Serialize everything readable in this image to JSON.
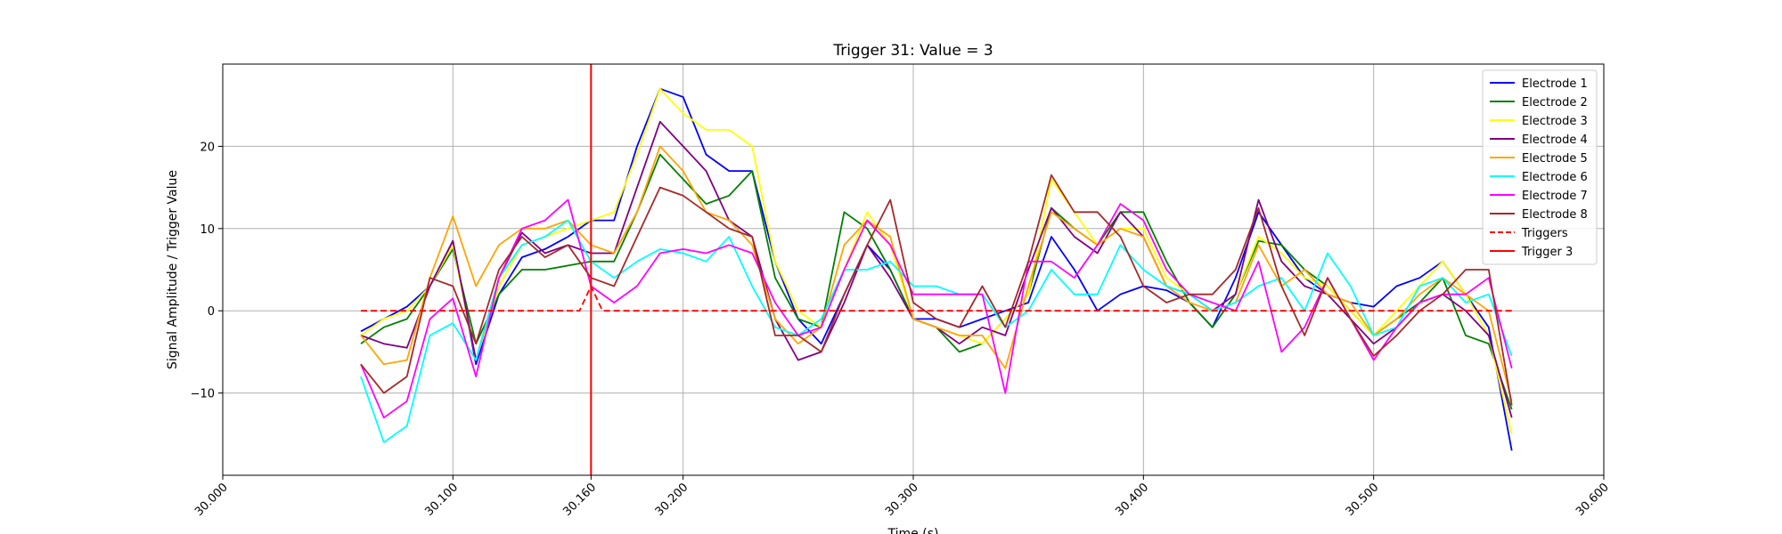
{
  "chart_data": {
    "type": "line",
    "title": "Trigger 31: Value = 3",
    "xlabel": "Time (s)",
    "ylabel": "Signal Amplitude / Trigger Value",
    "xlim": [
      30.0,
      30.6
    ],
    "ylim": [
      -20,
      30
    ],
    "x_ticks": [
      30.0,
      30.1,
      30.16,
      30.2,
      30.3,
      30.4,
      30.5,
      30.6
    ],
    "x_tick_labels": [
      "30.000",
      "30.100",
      "30.160",
      "30.200",
      "30.300",
      "30.400",
      "30.500",
      "30.600"
    ],
    "y_ticks": [
      -10,
      0,
      10,
      20
    ],
    "y_tick_labels": [
      "−10",
      "0",
      "10",
      "20"
    ],
    "grid": true,
    "legend_position": "top-right",
    "series": [
      {
        "name": "Electrode 1",
        "color": "#0000ff",
        "style": "solid",
        "x": [
          30.06,
          30.07,
          30.08,
          30.09,
          30.1,
          30.11,
          30.12,
          30.13,
          30.14,
          30.15,
          30.16,
          30.17,
          30.18,
          30.19,
          30.2,
          30.21,
          30.22,
          30.23,
          30.24,
          30.25,
          30.26,
          30.27,
          30.28,
          30.29,
          30.3,
          30.31,
          30.32,
          30.33,
          30.34,
          30.35,
          30.36,
          30.37,
          30.38,
          30.39,
          30.4,
          30.41,
          30.42,
          30.43,
          30.44,
          30.45,
          30.46,
          30.47,
          30.48,
          30.49,
          30.5,
          30.51,
          30.52,
          30.53,
          30.54,
          30.55,
          30.56
        ],
        "y": [
          -2.5,
          -1,
          0.5,
          3,
          8.5,
          -6.5,
          2,
          6.5,
          7.5,
          9,
          11,
          11,
          20,
          27,
          26,
          19,
          17,
          17,
          6,
          -1,
          -4,
          2,
          8,
          5,
          -1,
          -1,
          -2,
          -1,
          0,
          1,
          9,
          5,
          0,
          2,
          3,
          2.5,
          1,
          -2,
          4,
          12,
          8,
          4,
          2,
          1,
          0.5,
          3,
          4,
          6,
          2,
          -2,
          -17
        ]
      },
      {
        "name": "Electrode 2",
        "color": "#008000",
        "style": "solid",
        "x": [
          30.06,
          30.07,
          30.08,
          30.09,
          30.1,
          30.11,
          30.12,
          30.13,
          30.14,
          30.15,
          30.16,
          30.17,
          30.18,
          30.19,
          30.2,
          30.21,
          30.22,
          30.23,
          30.24,
          30.25,
          30.26,
          30.27,
          30.28,
          30.29,
          30.3,
          30.31,
          30.32,
          30.33,
          30.34,
          30.35,
          30.36,
          30.37,
          30.38,
          30.39,
          30.4,
          30.41,
          30.42,
          30.43,
          30.44,
          30.45,
          30.46,
          30.47,
          30.48,
          30.49,
          30.5,
          30.51,
          30.52,
          30.53,
          30.54,
          30.55,
          30.56
        ],
        "y": [
          -4,
          -2,
          -1,
          3,
          7.5,
          -4,
          2,
          5,
          5,
          5.5,
          6,
          6,
          12,
          19,
          16,
          13,
          14,
          17,
          4,
          -1,
          -2,
          12,
          10,
          5,
          -1,
          -2,
          -5,
          -4,
          -1,
          2,
          12.5,
          10,
          8,
          12,
          12,
          6,
          1,
          -2,
          2,
          8.5,
          8,
          5,
          3,
          0,
          -3,
          -1,
          1,
          4,
          -3,
          -4,
          -12
        ]
      },
      {
        "name": "Electrode 3",
        "color": "#ffff00",
        "style": "solid",
        "x": [
          30.06,
          30.07,
          30.08,
          30.09,
          30.1,
          30.11,
          30.12,
          30.13,
          30.14,
          30.15,
          30.16,
          30.17,
          30.18,
          30.19,
          30.2,
          30.21,
          30.22,
          30.23,
          30.24,
          30.25,
          30.26,
          30.27,
          30.28,
          30.29,
          30.3,
          30.31,
          30.32,
          30.33,
          30.34,
          30.35,
          30.36,
          30.37,
          30.38,
          30.39,
          30.4,
          30.41,
          30.42,
          30.43,
          30.44,
          30.45,
          30.46,
          30.47,
          30.48,
          30.49,
          30.5,
          30.51,
          30.52,
          30.53,
          30.54,
          30.55,
          30.56
        ],
        "y": [
          -3,
          -1,
          0,
          3,
          8,
          -6,
          3,
          8,
          9,
          10,
          11,
          12,
          19,
          27,
          24,
          22,
          22,
          20,
          6,
          0,
          -2,
          5,
          12,
          8,
          -1,
          -2,
          -3,
          -4,
          -1,
          2,
          16,
          12,
          8,
          10,
          10,
          4,
          2,
          0,
          2,
          9,
          7,
          4,
          3,
          0,
          -3,
          0,
          3,
          6,
          2,
          -3,
          -15
        ]
      },
      {
        "name": "Electrode 4",
        "color": "#800080",
        "style": "solid",
        "x": [
          30.06,
          30.07,
          30.08,
          30.09,
          30.1,
          30.11,
          30.12,
          30.13,
          30.14,
          30.15,
          30.16,
          30.17,
          30.18,
          30.19,
          30.2,
          30.21,
          30.22,
          30.23,
          30.24,
          30.25,
          30.26,
          30.27,
          30.28,
          30.29,
          30.3,
          30.31,
          30.32,
          30.33,
          30.34,
          30.35,
          30.36,
          30.37,
          30.38,
          30.39,
          30.4,
          30.41,
          30.42,
          30.43,
          30.44,
          30.45,
          30.46,
          30.47,
          30.48,
          30.49,
          30.5,
          30.51,
          30.52,
          30.53,
          30.54,
          30.55,
          30.56
        ],
        "y": [
          -3,
          -4,
          -4.5,
          3,
          8.5,
          -6,
          4,
          9.5,
          7,
          8,
          7,
          7,
          15,
          23,
          20,
          17,
          11,
          9,
          -1,
          -6,
          -5,
          1,
          8,
          4,
          -1,
          -2,
          -4,
          -2,
          -3,
          5,
          12.5,
          9,
          7,
          12,
          9,
          3,
          2,
          0,
          2,
          13.5,
          6,
          3,
          2,
          -1,
          -4,
          -2,
          1,
          2,
          0,
          -3,
          -13
        ]
      },
      {
        "name": "Electrode 5",
        "color": "#ffa500",
        "style": "solid",
        "x": [
          30.06,
          30.07,
          30.08,
          30.09,
          30.1,
          30.11,
          30.12,
          30.13,
          30.14,
          30.15,
          30.16,
          30.17,
          30.18,
          30.19,
          30.2,
          30.21,
          30.22,
          30.23,
          30.24,
          30.25,
          30.26,
          30.27,
          30.28,
          30.29,
          30.3,
          30.31,
          30.32,
          30.33,
          30.34,
          30.35,
          30.36,
          30.37,
          30.38,
          30.39,
          30.4,
          30.41,
          30.42,
          30.43,
          30.44,
          30.45,
          30.46,
          30.47,
          30.48,
          30.49,
          30.5,
          30.51,
          30.52,
          30.53,
          30.54,
          30.55,
          30.56
        ],
        "y": [
          -3,
          -6.5,
          -6,
          4,
          11.5,
          3,
          8,
          10,
          10,
          11,
          8,
          7,
          12,
          20,
          17,
          12,
          11,
          8,
          -1,
          -4,
          -2,
          8,
          11,
          9,
          -1,
          -2,
          -3,
          -3,
          -7,
          3,
          12,
          10,
          8,
          10,
          9,
          3,
          1,
          0,
          1,
          8,
          3,
          5,
          2,
          1,
          -3,
          -1,
          2,
          4,
          2,
          0,
          -11
        ]
      },
      {
        "name": "Electrode 6",
        "color": "#00ffff",
        "style": "solid",
        "x": [
          30.06,
          30.07,
          30.08,
          30.09,
          30.1,
          30.11,
          30.12,
          30.13,
          30.14,
          30.15,
          30.16,
          30.17,
          30.18,
          30.19,
          30.2,
          30.21,
          30.22,
          30.23,
          30.24,
          30.25,
          30.26,
          30.27,
          30.28,
          30.29,
          30.3,
          30.31,
          30.32,
          30.33,
          30.34,
          30.35,
          30.36,
          30.37,
          30.38,
          30.39,
          30.4,
          30.41,
          30.42,
          30.43,
          30.44,
          30.45,
          30.46,
          30.47,
          30.48,
          30.49,
          30.5,
          30.51,
          30.52,
          30.53,
          30.54,
          30.55,
          30.56
        ],
        "y": [
          -8,
          -16,
          -14,
          -3,
          -1.5,
          -6,
          4,
          8,
          9,
          11,
          6,
          4,
          6,
          7.5,
          7,
          6,
          9,
          3,
          -2,
          -3,
          -1,
          5,
          5,
          6,
          3,
          3,
          2,
          2,
          -2,
          0,
          5,
          2,
          2,
          8,
          5,
          3,
          2,
          0,
          1,
          3,
          4,
          0,
          7,
          3,
          -3,
          -2,
          3,
          4,
          1,
          2,
          -5.5
        ]
      },
      {
        "name": "Electrode 7",
        "color": "#ff00ff",
        "style": "solid",
        "x": [
          30.06,
          30.07,
          30.08,
          30.09,
          30.1,
          30.11,
          30.12,
          30.13,
          30.14,
          30.15,
          30.16,
          30.17,
          30.18,
          30.19,
          30.2,
          30.21,
          30.22,
          30.23,
          30.24,
          30.25,
          30.26,
          30.27,
          30.28,
          30.29,
          30.3,
          30.31,
          30.32,
          30.33,
          30.34,
          30.35,
          30.36,
          30.37,
          30.38,
          30.39,
          30.4,
          30.41,
          30.42,
          30.43,
          30.44,
          30.45,
          30.46,
          30.47,
          30.48,
          30.49,
          30.5,
          30.51,
          30.52,
          30.53,
          30.54,
          30.55,
          30.56
        ],
        "y": [
          -6.5,
          -13,
          -11,
          -1,
          1.5,
          -8,
          4,
          10,
          11,
          13.5,
          3,
          1,
          3,
          7,
          7.5,
          7,
          8,
          7,
          1,
          -3,
          -2,
          5,
          11,
          8,
          2,
          2,
          2,
          2,
          -10,
          6,
          6,
          4,
          8,
          13,
          11,
          5,
          2,
          1,
          0,
          6,
          -5,
          -2,
          4,
          -1,
          -6,
          -2,
          1,
          2,
          2,
          4,
          -7
        ]
      },
      {
        "name": "Electrode 8",
        "color": "#a52a2a",
        "style": "solid",
        "x": [
          30.06,
          30.07,
          30.08,
          30.09,
          30.1,
          30.11,
          30.12,
          30.13,
          30.14,
          30.15,
          30.16,
          30.17,
          30.18,
          30.19,
          30.2,
          30.21,
          30.22,
          30.23,
          30.24,
          30.25,
          30.26,
          30.27,
          30.28,
          30.29,
          30.3,
          30.31,
          30.32,
          30.33,
          30.34,
          30.35,
          30.36,
          30.37,
          30.38,
          30.39,
          30.4,
          30.41,
          30.42,
          30.43,
          30.44,
          30.45,
          30.46,
          30.47,
          30.48,
          30.49,
          30.5,
          30.51,
          30.52,
          30.53,
          30.54,
          30.55,
          30.56
        ],
        "y": [
          -6.5,
          -10,
          -8,
          4,
          3,
          -4,
          5,
          9,
          6.5,
          8,
          4,
          3,
          9,
          15,
          14,
          12,
          10,
          9,
          -3,
          -3,
          -5,
          2,
          8,
          13.5,
          1,
          -1,
          -2,
          3,
          -2,
          6,
          16.5,
          12,
          12,
          9,
          3,
          1,
          2,
          2,
          5,
          12.5,
          3,
          -3,
          4,
          -1,
          -5.5,
          -3,
          0,
          2,
          5,
          5,
          -11.5
        ]
      },
      {
        "name": "Triggers",
        "color": "#ff0000",
        "style": "dashed",
        "x": [
          30.06,
          30.155,
          30.16,
          30.165,
          30.56
        ],
        "y": [
          0,
          0,
          3,
          0,
          0
        ]
      }
    ],
    "vline": {
      "name": "Trigger 3",
      "x": 30.16,
      "color": "#ff0000"
    }
  }
}
